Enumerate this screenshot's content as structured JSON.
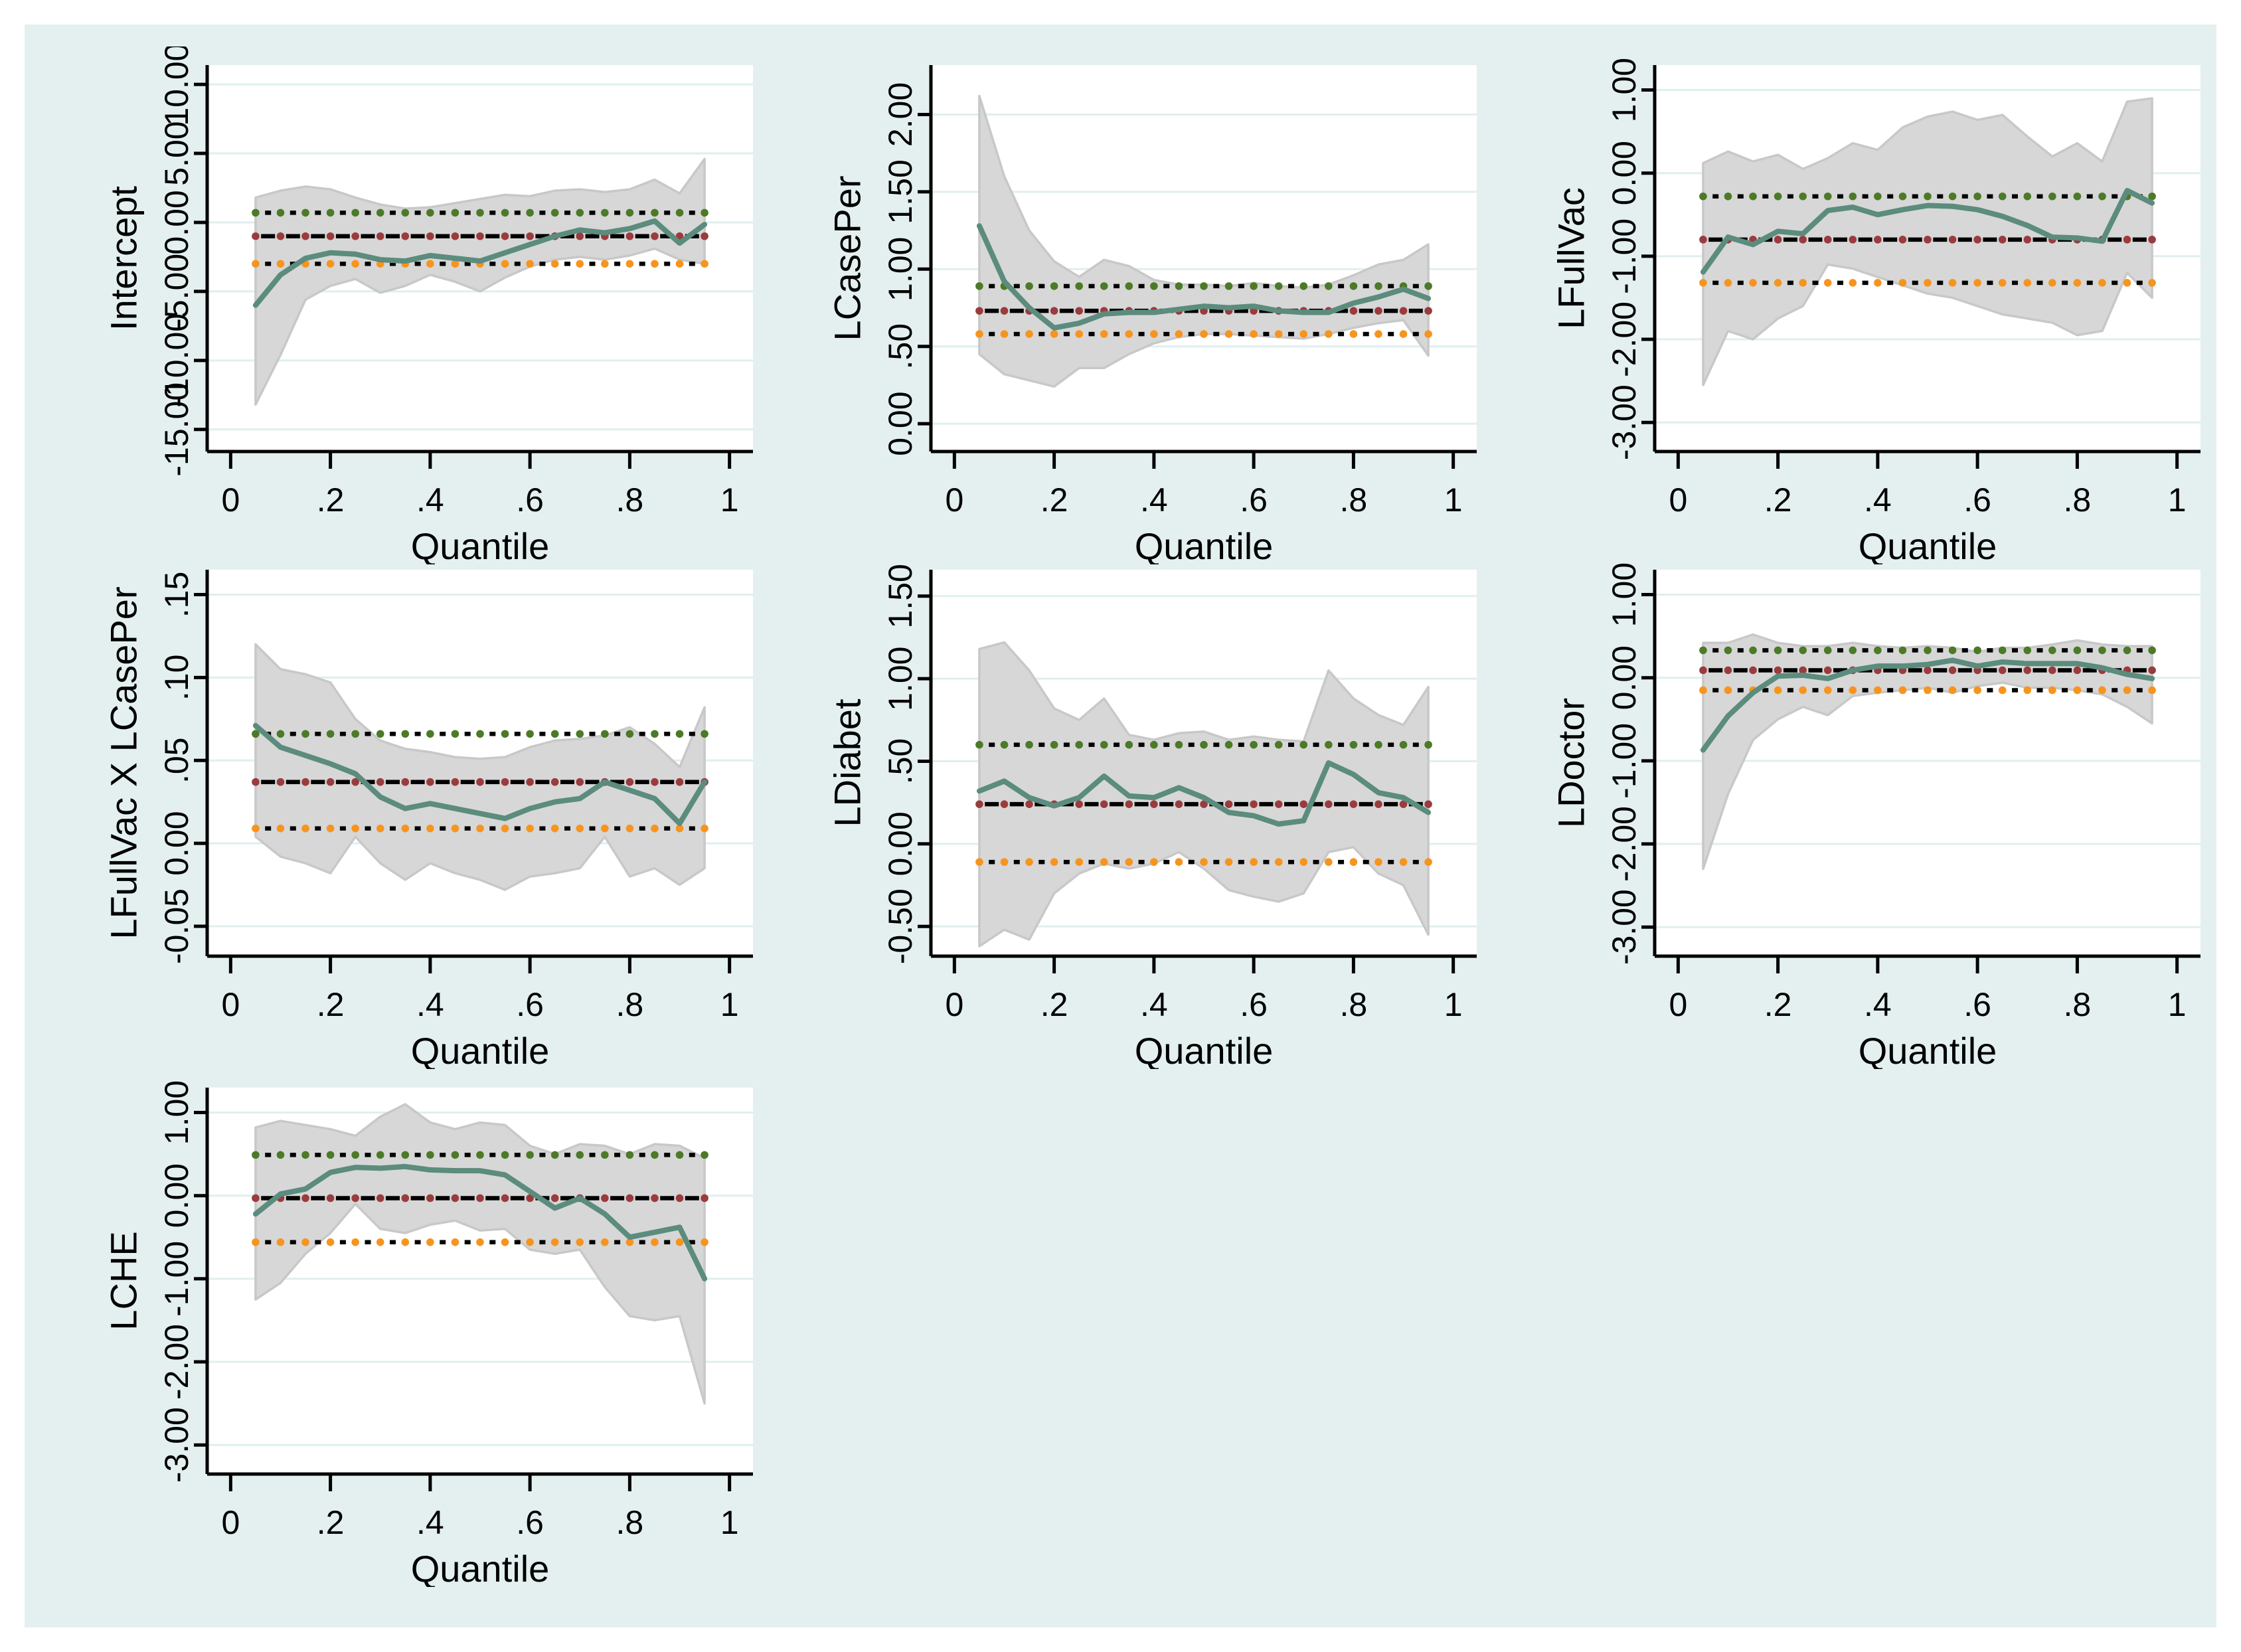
{
  "figure": {
    "title": "",
    "xlabel_shared": "Quantile",
    "background_color": "#e4f0f0",
    "outer_margin_color": "#ffffff",
    "plot_background": "#ffffff",
    "gridline_color": "#dfefef",
    "band_fill": "#d7d7d7",
    "band_stroke": "#c8c8c8",
    "colors": {
      "quantile_line": "#5b8c7d",
      "ols_marker": "#9b3b3e",
      "ols_upper_marker": "#4c7a27",
      "ols_lower_marker": "#f7941e",
      "dash_color": "#000000",
      "axis_color": "#000000",
      "text_color": "#000000"
    }
  },
  "chart_data": [
    {
      "type": "line",
      "ylabel": "Intercept",
      "xlabel": "Quantile",
      "x": [
        0.05,
        0.1,
        0.15,
        0.2,
        0.25,
        0.3,
        0.35,
        0.4,
        0.45,
        0.5,
        0.55,
        0.6,
        0.65,
        0.7,
        0.75,
        0.8,
        0.85,
        0.9,
        0.95
      ],
      "quantile_estimates": [
        -6.0,
        -3.8,
        -2.6,
        -2.2,
        -2.3,
        -2.7,
        -2.8,
        -2.4,
        -2.6,
        -2.8,
        -2.2,
        -1.6,
        -1.0,
        -0.55,
        -0.75,
        -0.45,
        0.1,
        -1.5,
        -0.15
      ],
      "ci_upper": [
        1.8,
        2.3,
        2.6,
        2.4,
        1.8,
        1.3,
        1.0,
        1.1,
        1.4,
        1.7,
        2.0,
        1.9,
        2.3,
        2.4,
        2.2,
        2.4,
        3.1,
        2.1,
        4.6
      ],
      "ci_lower": [
        -13.2,
        -9.6,
        -5.6,
        -4.6,
        -4.1,
        -5.1,
        -4.6,
        -3.8,
        -4.3,
        -5.0,
        -4.0,
        -3.2,
        -2.7,
        -2.5,
        -2.7,
        -2.4,
        -1.9,
        -2.7,
        -3.0
      ],
      "ols_estimate": -1.0,
      "ols_ci_upper": 0.7,
      "ols_ci_lower": -3.0,
      "ytick_values": [
        10,
        5,
        0,
        -5,
        -10,
        -15
      ],
      "ytick_labels": [
        "10.00",
        "5.00",
        "0.00",
        "-5.00",
        "-10.00",
        "-15.00"
      ],
      "xtick_values": [
        0,
        0.2,
        0.4,
        0.6,
        0.8,
        1
      ],
      "xtick_labels": [
        "0",
        ".2",
        ".4",
        ".6",
        ".8",
        "1"
      ],
      "ylim": [
        -16.6,
        11.4
      ],
      "xlim": [
        -0.05,
        1.05
      ],
      "grid": true,
      "legend": "none"
    },
    {
      "type": "line",
      "ylabel": "LCasePer",
      "xlabel": "Quantile",
      "x": [
        0.05,
        0.1,
        0.15,
        0.2,
        0.25,
        0.3,
        0.35,
        0.4,
        0.45,
        0.5,
        0.55,
        0.6,
        0.65,
        0.7,
        0.75,
        0.8,
        0.85,
        0.9,
        0.95
      ],
      "quantile_estimates": [
        1.28,
        0.92,
        0.75,
        0.62,
        0.65,
        0.71,
        0.72,
        0.72,
        0.74,
        0.76,
        0.75,
        0.76,
        0.73,
        0.72,
        0.72,
        0.78,
        0.82,
        0.87,
        0.81
      ],
      "ci_upper": [
        2.12,
        1.6,
        1.25,
        1.05,
        0.95,
        1.06,
        1.02,
        0.93,
        0.9,
        0.9,
        0.89,
        0.91,
        0.89,
        0.88,
        0.9,
        0.96,
        1.03,
        1.06,
        1.16
      ],
      "ci_lower": [
        0.45,
        0.32,
        0.28,
        0.24,
        0.36,
        0.36,
        0.45,
        0.52,
        0.56,
        0.58,
        0.58,
        0.57,
        0.56,
        0.55,
        0.58,
        0.62,
        0.65,
        0.67,
        0.44
      ],
      "ols_estimate": 0.73,
      "ols_ci_upper": 0.89,
      "ols_ci_lower": 0.58,
      "ytick_values": [
        2,
        1.5,
        1,
        0.5,
        0
      ],
      "ytick_labels": [
        "2.00",
        "1.50",
        "1.00",
        ".50",
        "0.00"
      ],
      "xtick_values": [
        0,
        0.2,
        0.4,
        0.6,
        0.8,
        1
      ],
      "xtick_labels": [
        "0",
        ".2",
        ".4",
        ".6",
        ".8",
        "1"
      ],
      "ylim": [
        -0.18,
        2.32
      ],
      "xlim": [
        -0.05,
        1.05
      ],
      "grid": true,
      "legend": "none"
    },
    {
      "type": "line",
      "ylabel": "LFullVac",
      "xlabel": "Quantile",
      "x": [
        0.05,
        0.1,
        0.15,
        0.2,
        0.25,
        0.3,
        0.35,
        0.4,
        0.45,
        0.5,
        0.55,
        0.6,
        0.65,
        0.7,
        0.75,
        0.8,
        0.85,
        0.9,
        0.95
      ],
      "quantile_estimates": [
        -1.19,
        -0.77,
        -0.86,
        -0.7,
        -0.73,
        -0.45,
        -0.41,
        -0.5,
        -0.44,
        -0.39,
        -0.4,
        -0.44,
        -0.52,
        -0.63,
        -0.77,
        -0.78,
        -0.82,
        -0.21,
        -0.36
      ],
      "ci_upper": [
        0.12,
        0.26,
        0.14,
        0.22,
        0.05,
        0.18,
        0.36,
        0.28,
        0.55,
        0.68,
        0.74,
        0.64,
        0.7,
        0.44,
        0.2,
        0.36,
        0.14,
        0.86,
        0.9
      ],
      "ci_lower": [
        -2.55,
        -1.9,
        -2.0,
        -1.75,
        -1.6,
        -1.1,
        -1.15,
        -1.25,
        -1.35,
        -1.45,
        -1.5,
        -1.6,
        -1.7,
        -1.75,
        -1.8,
        -1.95,
        -1.9,
        -1.2,
        -1.5
      ],
      "ols_estimate": -0.8,
      "ols_ci_upper": -0.28,
      "ols_ci_lower": -1.32,
      "ytick_values": [
        1,
        0,
        -1,
        -2,
        -3
      ],
      "ytick_labels": [
        "1.00",
        "0.00",
        "-1.00",
        "-2.00",
        "-3.00"
      ],
      "xtick_values": [
        0,
        0.2,
        0.4,
        0.6,
        0.8,
        1
      ],
      "xtick_labels": [
        "0",
        ".2",
        ".4",
        ".6",
        ".8",
        "1"
      ],
      "ylim": [
        -3.35,
        1.3
      ],
      "xlim": [
        -0.05,
        1.05
      ],
      "grid": true,
      "legend": "none"
    },
    {
      "type": "line",
      "ylabel": "LFullVac X LCasePer",
      "xlabel": "Quantile",
      "x": [
        0.05,
        0.1,
        0.15,
        0.2,
        0.25,
        0.3,
        0.35,
        0.4,
        0.45,
        0.5,
        0.55,
        0.6,
        0.65,
        0.7,
        0.75,
        0.8,
        0.85,
        0.9,
        0.95
      ],
      "quantile_estimates": [
        0.071,
        0.058,
        0.053,
        0.048,
        0.042,
        0.028,
        0.021,
        0.024,
        0.021,
        0.018,
        0.015,
        0.021,
        0.025,
        0.027,
        0.037,
        0.032,
        0.027,
        0.012,
        0.037
      ],
      "ci_upper": [
        0.12,
        0.105,
        0.102,
        0.097,
        0.075,
        0.062,
        0.057,
        0.055,
        0.052,
        0.051,
        0.052,
        0.058,
        0.062,
        0.063,
        0.065,
        0.07,
        0.06,
        0.046,
        0.082
      ],
      "ci_lower": [
        0.004,
        -0.008,
        -0.012,
        -0.018,
        0.004,
        -0.012,
        -0.022,
        -0.012,
        -0.018,
        -0.022,
        -0.028,
        -0.02,
        -0.018,
        -0.015,
        0.004,
        -0.02,
        -0.015,
        -0.025,
        -0.015
      ],
      "ols_estimate": 0.037,
      "ols_ci_upper": 0.066,
      "ols_ci_lower": 0.009,
      "ytick_values": [
        0.15,
        0.1,
        0.05,
        0,
        -0.05
      ],
      "ytick_labels": [
        ".15",
        ".10",
        ".05",
        "0.00",
        "-0.05"
      ],
      "xtick_values": [
        0,
        0.2,
        0.4,
        0.6,
        0.8,
        1
      ],
      "xtick_labels": [
        "0",
        ".2",
        ".4",
        ".6",
        ".8",
        "1"
      ],
      "ylim": [
        -0.068,
        0.165
      ],
      "xlim": [
        -0.05,
        1.05
      ],
      "grid": true,
      "legend": "none"
    },
    {
      "type": "line",
      "ylabel": "LDiabet",
      "xlabel": "Quantile",
      "x": [
        0.05,
        0.1,
        0.15,
        0.2,
        0.25,
        0.3,
        0.35,
        0.4,
        0.45,
        0.5,
        0.55,
        0.6,
        0.65,
        0.7,
        0.75,
        0.8,
        0.85,
        0.9,
        0.95
      ],
      "quantile_estimates": [
        0.32,
        0.38,
        0.28,
        0.23,
        0.28,
        0.41,
        0.29,
        0.28,
        0.34,
        0.28,
        0.19,
        0.17,
        0.12,
        0.14,
        0.49,
        0.42,
        0.31,
        0.28,
        0.19
      ],
      "ci_upper": [
        1.18,
        1.22,
        1.05,
        0.82,
        0.75,
        0.88,
        0.66,
        0.63,
        0.67,
        0.68,
        0.63,
        0.65,
        0.63,
        0.62,
        1.05,
        0.88,
        0.78,
        0.72,
        0.95
      ],
      "ci_lower": [
        -0.62,
        -0.52,
        -0.58,
        -0.3,
        -0.18,
        -0.12,
        -0.15,
        -0.12,
        -0.05,
        -0.15,
        -0.28,
        -0.32,
        -0.35,
        -0.3,
        -0.05,
        -0.02,
        -0.18,
        -0.25,
        -0.55
      ],
      "ols_estimate": 0.24,
      "ols_ci_upper": 0.6,
      "ols_ci_lower": -0.11,
      "ytick_values": [
        1.5,
        1,
        0.5,
        0,
        -0.5
      ],
      "ytick_labels": [
        "1.50",
        "1.00",
        ".50",
        "0.00",
        "-0.50"
      ],
      "xtick_values": [
        0,
        0.2,
        0.4,
        0.6,
        0.8,
        1
      ],
      "xtick_labels": [
        "0",
        ".2",
        ".4",
        ".6",
        ".8",
        "1"
      ],
      "ylim": [
        -0.68,
        1.66
      ],
      "xlim": [
        -0.05,
        1.05
      ],
      "grid": true,
      "legend": "none"
    },
    {
      "type": "line",
      "ylabel": "LDoctor",
      "xlabel": "Quantile",
      "x": [
        0.05,
        0.1,
        0.15,
        0.2,
        0.25,
        0.3,
        0.35,
        0.4,
        0.45,
        0.5,
        0.55,
        0.6,
        0.65,
        0.7,
        0.75,
        0.8,
        0.85,
        0.9,
        0.95
      ],
      "quantile_estimates": [
        -0.87,
        -0.46,
        -0.18,
        0.02,
        0.03,
        -0.01,
        0.09,
        0.14,
        0.14,
        0.16,
        0.21,
        0.14,
        0.19,
        0.17,
        0.17,
        0.17,
        0.12,
        0.04,
        -0.01
      ],
      "ci_upper": [
        0.42,
        0.42,
        0.52,
        0.42,
        0.38,
        0.38,
        0.42,
        0.38,
        0.36,
        0.38,
        0.36,
        0.31,
        0.36,
        0.36,
        0.4,
        0.45,
        0.4,
        0.38,
        0.38
      ],
      "ci_lower": [
        -2.3,
        -1.4,
        -0.75,
        -0.5,
        -0.35,
        -0.45,
        -0.22,
        -0.18,
        -0.15,
        -0.12,
        -0.18,
        -0.1,
        -0.06,
        -0.12,
        -0.12,
        -0.15,
        -0.2,
        -0.35,
        -0.55
      ],
      "ols_estimate": 0.09,
      "ols_ci_upper": 0.33,
      "ols_ci_lower": -0.15,
      "ytick_values": [
        1,
        0,
        -1,
        -2,
        -3
      ],
      "ytick_labels": [
        "1.00",
        "0.00",
        "-1.00",
        "-2.00",
        "-3.00"
      ],
      "xtick_values": [
        0,
        0.2,
        0.4,
        0.6,
        0.8,
        1
      ],
      "xtick_labels": [
        "0",
        ".2",
        ".4",
        ".6",
        ".8",
        "1"
      ],
      "ylim": [
        -3.35,
        1.3
      ],
      "xlim": [
        -0.05,
        1.05
      ],
      "grid": true,
      "legend": "none"
    },
    {
      "type": "line",
      "ylabel": "LCHE",
      "xlabel": "Quantile",
      "x": [
        0.05,
        0.1,
        0.15,
        0.2,
        0.25,
        0.3,
        0.35,
        0.4,
        0.45,
        0.5,
        0.55,
        0.6,
        0.65,
        0.7,
        0.75,
        0.8,
        0.85,
        0.9,
        0.95
      ],
      "quantile_estimates": [
        -0.22,
        0.02,
        0.08,
        0.28,
        0.34,
        0.33,
        0.35,
        0.31,
        0.3,
        0.3,
        0.25,
        0.05,
        -0.15,
        -0.03,
        -0.22,
        -0.5,
        -0.44,
        -0.38,
        -1.0
      ],
      "ci_upper": [
        0.82,
        0.9,
        0.85,
        0.8,
        0.72,
        0.95,
        1.1,
        0.88,
        0.8,
        0.88,
        0.85,
        0.6,
        0.5,
        0.62,
        0.6,
        0.5,
        0.62,
        0.6,
        0.45
      ],
      "ci_lower": [
        -1.25,
        -1.05,
        -0.7,
        -0.45,
        -0.1,
        -0.4,
        -0.45,
        -0.35,
        -0.3,
        -0.42,
        -0.4,
        -0.65,
        -0.7,
        -0.65,
        -1.1,
        -1.45,
        -1.5,
        -1.45,
        -2.5
      ],
      "ols_estimate": -0.03,
      "ols_ci_upper": 0.49,
      "ols_ci_lower": -0.56,
      "ytick_values": [
        1,
        0,
        -1,
        -2,
        -3
      ],
      "ytick_labels": [
        "1.00",
        "0.00",
        "-1.00",
        "-2.00",
        "-3.00"
      ],
      "xtick_values": [
        0,
        0.2,
        0.4,
        0.6,
        0.8,
        1
      ],
      "xtick_labels": [
        "0",
        ".2",
        ".4",
        ".6",
        ".8",
        "1"
      ],
      "ylim": [
        -3.35,
        1.3
      ],
      "xlim": [
        -0.05,
        1.05
      ],
      "grid": true,
      "legend": "none"
    }
  ]
}
